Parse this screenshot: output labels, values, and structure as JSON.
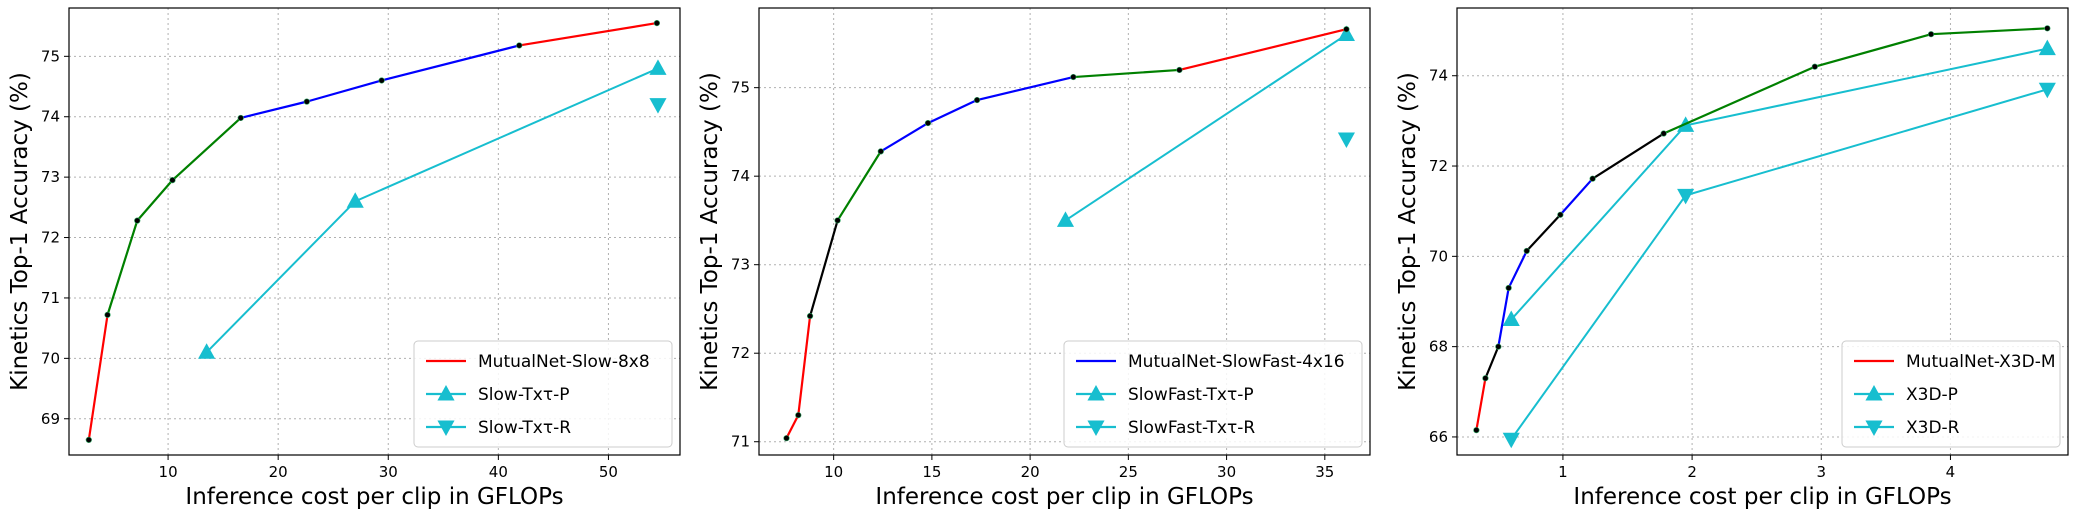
{
  "chart_data": [
    {
      "type": "line",
      "xlabel": "Inference cost per clip in GFLOPs",
      "ylabel": "Kinetics Top-1 Accuracy (%)",
      "xlim": [
        1,
        56.5
      ],
      "ylim": [
        68.4,
        75.8
      ],
      "xticks": [
        10,
        20,
        30,
        40,
        50
      ],
      "yticks": [
        69,
        70,
        71,
        72,
        73,
        74,
        75
      ],
      "grid": true,
      "legend_position": "bottom-right",
      "mutual_curve": {
        "x": [
          2.8,
          4.5,
          7.2,
          10.4,
          16.6,
          22.6,
          29.4,
          41.9,
          54.4
        ],
        "y": [
          68.65,
          70.72,
          72.28,
          72.95,
          73.98,
          74.25,
          74.6,
          75.18,
          75.55
        ],
        "segment_colors": [
          "#ff0000",
          "#008000",
          "#008000",
          "#008000",
          "#0000ff",
          "#0000ff",
          "#0000ff",
          "#ff0000"
        ]
      },
      "series": [
        {
          "name": "MutualNet-Slow-8x8",
          "marker": "line",
          "color": "#ff0000"
        },
        {
          "name": "Slow-Txτ-P",
          "marker": "triangle-up",
          "color": "#17becf",
          "connected": true,
          "x": [
            13.5,
            27.0,
            54.5
          ],
          "y": [
            70.1,
            72.6,
            74.8
          ]
        },
        {
          "name": "Slow-Txτ-R",
          "marker": "triangle-down",
          "color": "#17becf",
          "connected": false,
          "x": [
            54.5
          ],
          "y": [
            74.2
          ]
        }
      ]
    },
    {
      "type": "line",
      "xlabel": "Inference cost per clip in GFLOPs",
      "ylabel": "Kinetics Top-1 Accuracy (%)",
      "xlim": [
        6.2,
        37.3
      ],
      "ylim": [
        70.85,
        75.9
      ],
      "xticks": [
        10,
        15,
        20,
        25,
        30,
        35
      ],
      "yticks": [
        71,
        72,
        73,
        74,
        75
      ],
      "grid": true,
      "legend_position": "bottom-right",
      "mutual_curve": {
        "x": [
          7.6,
          8.2,
          8.8,
          10.2,
          12.4,
          14.8,
          17.3,
          22.2,
          27.6,
          36.1
        ],
        "y": [
          71.04,
          71.3,
          72.42,
          73.5,
          74.28,
          74.6,
          74.86,
          75.12,
          75.2,
          75.66
        ],
        "segment_colors": [
          "#ff0000",
          "#ff0000",
          "#000000",
          "#008000",
          "#0000ff",
          "#0000ff",
          "#0000ff",
          "#008000",
          "#ff0000"
        ]
      },
      "series": [
        {
          "name": "MutualNet-SlowFast-4x16",
          "marker": "line",
          "color": "#0000ff"
        },
        {
          "name": "SlowFast-Txτ-P",
          "marker": "triangle-up",
          "color": "#17becf",
          "connected": true,
          "x": [
            21.8,
            36.1
          ],
          "y": [
            73.5,
            75.6
          ]
        },
        {
          "name": "SlowFast-Txτ-R",
          "marker": "triangle-down",
          "color": "#17becf",
          "connected": false,
          "x": [
            36.1
          ],
          "y": [
            74.42
          ]
        }
      ]
    },
    {
      "type": "line",
      "xlabel": "Inference cost per clip in GFLOPs",
      "ylabel": "Kinetics Top-1 Accuracy (%)",
      "xlim": [
        0.18,
        4.91
      ],
      "ylim": [
        65.6,
        75.5
      ],
      "xticks": [
        1,
        2,
        3,
        4
      ],
      "yticks": [
        66,
        68,
        70,
        72,
        74
      ],
      "grid": true,
      "legend_position": "bottom-right",
      "mutual_curve": {
        "x": [
          0.33,
          0.4,
          0.5,
          0.58,
          0.72,
          0.98,
          1.23,
          1.78,
          2.95,
          3.85,
          4.75
        ],
        "y": [
          66.15,
          67.3,
          68.0,
          69.3,
          70.12,
          70.92,
          71.72,
          72.72,
          74.2,
          74.92,
          75.05
        ],
        "segment_colors": [
          "#ff0000",
          "#000000",
          "#0000ff",
          "#0000ff",
          "#000000",
          "#0000ff",
          "#000000",
          "#008000",
          "#008000",
          "#008000"
        ]
      },
      "series": [
        {
          "name": "MutualNet-X3D-M",
          "marker": "line",
          "color": "#ff0000"
        },
        {
          "name": "X3D-P",
          "marker": "triangle-up",
          "color": "#17becf",
          "connected": true,
          "x": [
            0.6,
            1.95,
            4.75
          ],
          "y": [
            68.6,
            72.9,
            74.6
          ]
        },
        {
          "name": "X3D-R",
          "marker": "triangle-down",
          "color": "#17becf",
          "connected": true,
          "x": [
            0.6,
            1.95,
            4.75
          ],
          "y": [
            65.95,
            71.35,
            73.7
          ]
        }
      ]
    }
  ]
}
